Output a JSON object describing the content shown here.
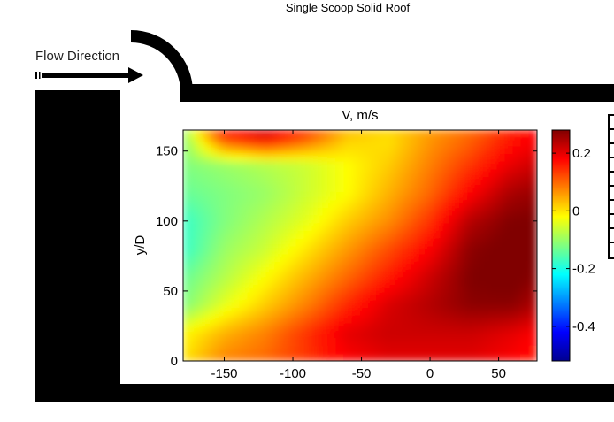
{
  "figure": {
    "title": "Single Scoop Solid Roof",
    "annotation": "Flow Direction"
  },
  "chart_data": {
    "type": "heatmap",
    "title": "V, m/s",
    "xlabel": "",
    "ylabel": "y/D",
    "xlim": [
      -180,
      78
    ],
    "ylim": [
      0,
      165
    ],
    "xticks": [
      -150,
      -100,
      -50,
      0,
      50
    ],
    "yticks": [
      0,
      50,
      100,
      150
    ],
    "colorbar": {
      "range": [
        -0.52,
        0.28
      ],
      "ticks": [
        0.2,
        0,
        -0.2,
        -0.4
      ],
      "tick_labels": [
        "0.2",
        "0",
        "-0.2",
        "-0.4"
      ],
      "colormap": "jet"
    },
    "grid_x": [
      -180,
      -150,
      -120,
      -90,
      -60,
      -30,
      0,
      30,
      60,
      78
    ],
    "grid_y": [
      0,
      20,
      40,
      60,
      80,
      100,
      120,
      140,
      160,
      165
    ],
    "values": [
      [
        0.0,
        0.08,
        0.1,
        0.14,
        0.18,
        0.2,
        0.2,
        0.2,
        0.18,
        0.16
      ],
      [
        -0.02,
        0.04,
        0.08,
        0.14,
        0.2,
        0.22,
        0.22,
        0.22,
        0.2,
        0.18
      ],
      [
        -0.12,
        -0.04,
        0.02,
        0.08,
        0.15,
        0.21,
        0.24,
        0.27,
        0.27,
        0.24
      ],
      [
        -0.14,
        -0.08,
        -0.02,
        0.04,
        0.1,
        0.16,
        0.22,
        0.28,
        0.29,
        0.27
      ],
      [
        -0.18,
        -0.1,
        -0.06,
        0.0,
        0.06,
        0.12,
        0.18,
        0.27,
        0.29,
        0.28
      ],
      [
        -0.18,
        -0.12,
        -0.08,
        -0.04,
        0.02,
        0.07,
        0.14,
        0.24,
        0.28,
        0.28
      ],
      [
        -0.14,
        -0.12,
        -0.1,
        -0.06,
        -0.02,
        0.04,
        0.1,
        0.18,
        0.25,
        0.26
      ],
      [
        -0.12,
        -0.1,
        -0.08,
        -0.06,
        -0.02,
        0.02,
        0.08,
        0.14,
        0.2,
        0.22
      ],
      [
        -0.12,
        0.14,
        0.2,
        0.12,
        0.02,
        0.0,
        0.06,
        0.1,
        0.16,
        0.18
      ],
      [
        -0.1,
        0.18,
        0.22,
        0.14,
        0.04,
        0.02,
        0.06,
        0.1,
        0.16,
        0.18
      ]
    ]
  }
}
